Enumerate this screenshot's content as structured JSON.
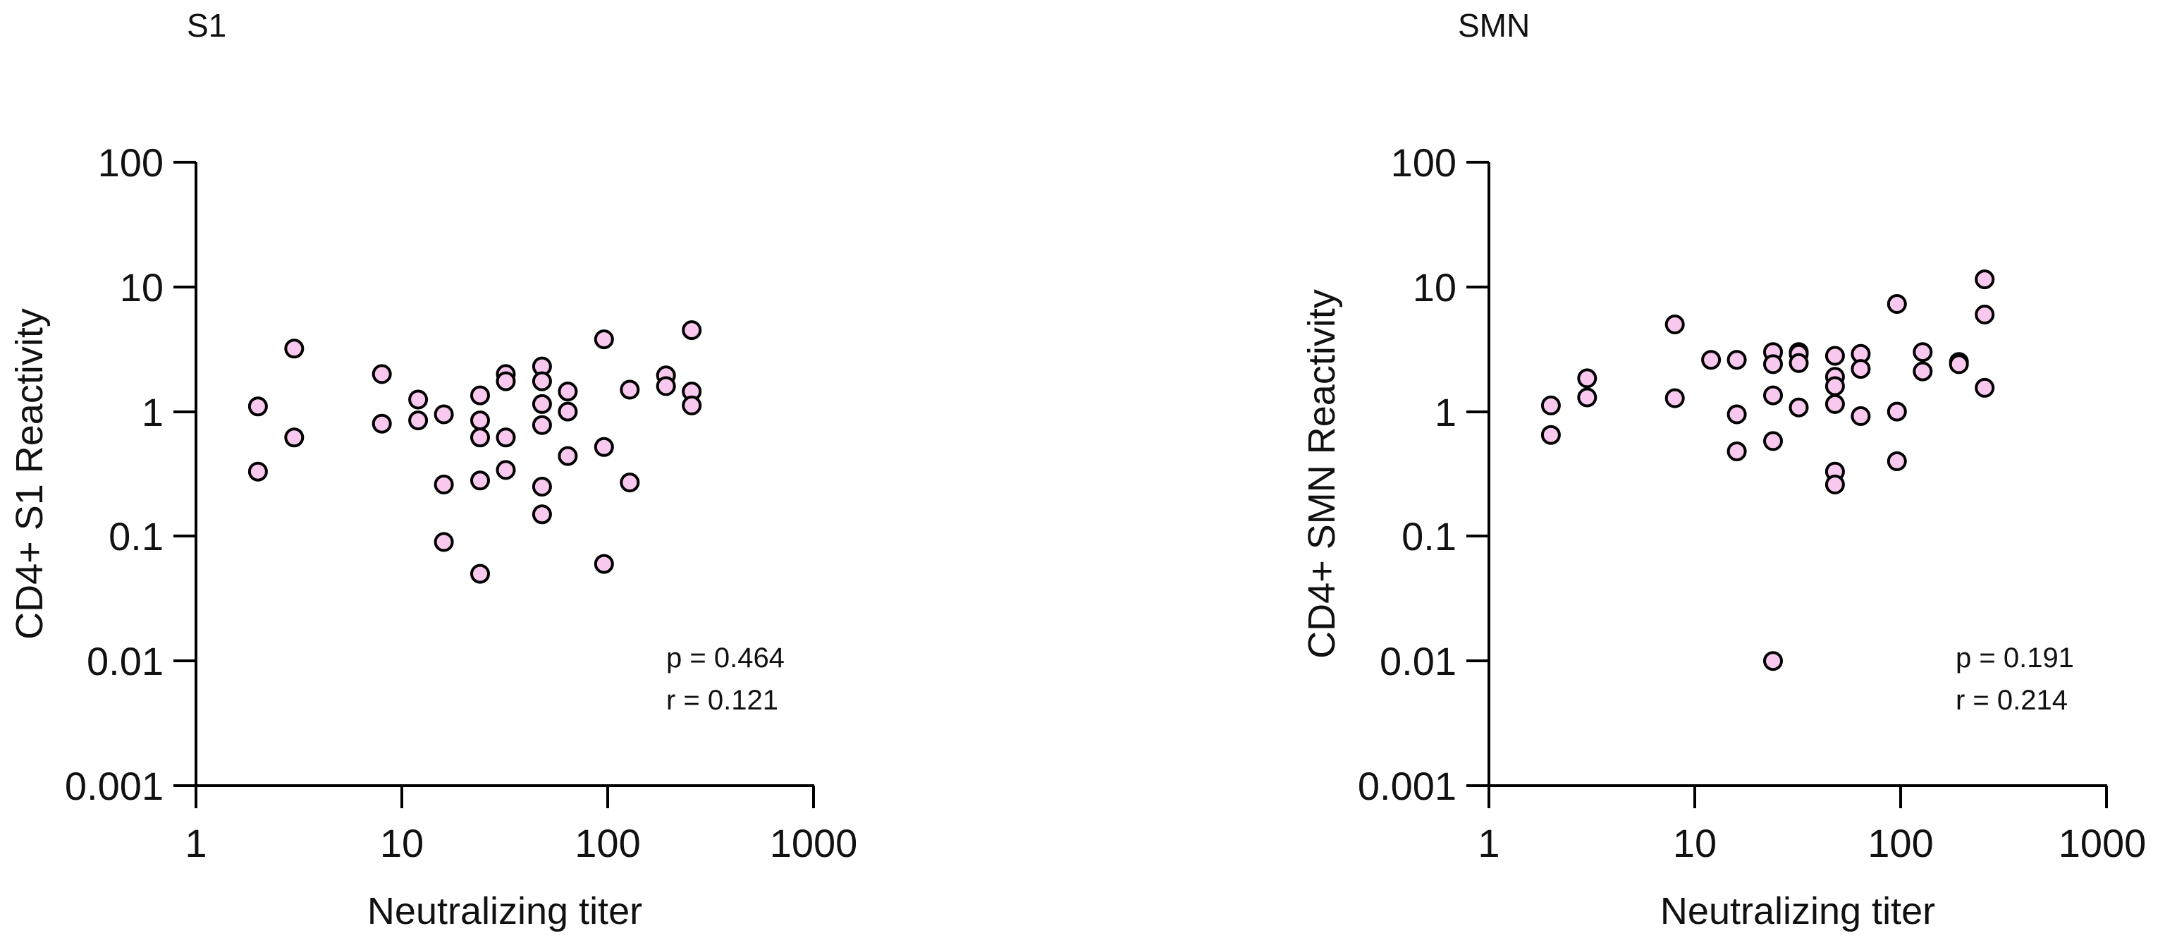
{
  "marker_color": "#f9c8ee",
  "chart_data": [
    {
      "type": "scatter",
      "title": "S1",
      "xlabel": "Neutralizing titer",
      "ylabel": "CD4+ S1 Reactivity",
      "xscale": "log",
      "yscale": "log",
      "xlim": [
        1,
        1000
      ],
      "ylim": [
        0.001,
        100
      ],
      "xticks": [
        1,
        10,
        100,
        1000
      ],
      "xtick_labels": [
        "1",
        "10",
        "100",
        "1000"
      ],
      "yticks": [
        0.001,
        0.01,
        0.1,
        1,
        10,
        100
      ],
      "ytick_labels": [
        "0.001",
        "0.01",
        "0.1",
        "1",
        "10",
        "100"
      ],
      "annotations": [
        "p = 0.464",
        "r = 0.121"
      ],
      "points": [
        {
          "x": 2,
          "y": 1.1
        },
        {
          "x": 2,
          "y": 0.33
        },
        {
          "x": 3,
          "y": 3.2
        },
        {
          "x": 3,
          "y": 0.62
        },
        {
          "x": 8,
          "y": 2.0
        },
        {
          "x": 8,
          "y": 0.8
        },
        {
          "x": 12,
          "y": 1.25
        },
        {
          "x": 12,
          "y": 0.85
        },
        {
          "x": 16,
          "y": 0.95
        },
        {
          "x": 16,
          "y": 0.26
        },
        {
          "x": 16,
          "y": 0.09
        },
        {
          "x": 24,
          "y": 1.35
        },
        {
          "x": 24,
          "y": 0.85
        },
        {
          "x": 24,
          "y": 0.62
        },
        {
          "x": 24,
          "y": 0.28
        },
        {
          "x": 24,
          "y": 0.05
        },
        {
          "x": 32,
          "y": 2.0
        },
        {
          "x": 32,
          "y": 1.75
        },
        {
          "x": 32,
          "y": 0.62
        },
        {
          "x": 32,
          "y": 0.34
        },
        {
          "x": 48,
          "y": 2.3
        },
        {
          "x": 48,
          "y": 1.75
        },
        {
          "x": 48,
          "y": 1.15
        },
        {
          "x": 48,
          "y": 0.78
        },
        {
          "x": 48,
          "y": 0.25
        },
        {
          "x": 48,
          "y": 0.15
        },
        {
          "x": 64,
          "y": 1.45
        },
        {
          "x": 64,
          "y": 1.0
        },
        {
          "x": 64,
          "y": 0.44
        },
        {
          "x": 96,
          "y": 3.8
        },
        {
          "x": 96,
          "y": 0.52
        },
        {
          "x": 96,
          "y": 0.06
        },
        {
          "x": 128,
          "y": 1.5
        },
        {
          "x": 128,
          "y": 0.27
        },
        {
          "x": 192,
          "y": 1.95
        },
        {
          "x": 192,
          "y": 1.6
        },
        {
          "x": 256,
          "y": 4.5
        },
        {
          "x": 256,
          "y": 1.45
        },
        {
          "x": 256,
          "y": 1.12
        }
      ]
    },
    {
      "type": "scatter",
      "title": "SMN",
      "xlabel": "Neutralizing titer",
      "ylabel": "CD4+ SMN Reactivity",
      "xscale": "log",
      "yscale": "log",
      "xlim": [
        1,
        1000
      ],
      "ylim": [
        0.001,
        100
      ],
      "xticks": [
        1,
        10,
        100,
        1000
      ],
      "xtick_labels": [
        "1",
        "10",
        "100",
        "1000"
      ],
      "yticks": [
        0.001,
        0.01,
        0.1,
        1,
        10,
        100
      ],
      "ytick_labels": [
        "0.001",
        "0.01",
        "0.1",
        "1",
        "10",
        "100"
      ],
      "annotations": [
        "p = 0.191",
        "r = 0.214"
      ],
      "points": [
        {
          "x": 2,
          "y": 1.12
        },
        {
          "x": 2,
          "y": 0.65
        },
        {
          "x": 3,
          "y": 1.85
        },
        {
          "x": 3,
          "y": 1.3
        },
        {
          "x": 8,
          "y": 5.0
        },
        {
          "x": 8,
          "y": 1.28
        },
        {
          "x": 12,
          "y": 2.6
        },
        {
          "x": 16,
          "y": 2.6
        },
        {
          "x": 16,
          "y": 0.95
        },
        {
          "x": 16,
          "y": 0.48
        },
        {
          "x": 24,
          "y": 3.0
        },
        {
          "x": 24,
          "y": 2.4
        },
        {
          "x": 24,
          "y": 1.35
        },
        {
          "x": 24,
          "y": 0.58
        },
        {
          "x": 24,
          "y": 0.01
        },
        {
          "x": 32,
          "y": 3.0
        },
        {
          "x": 32,
          "y": 2.9
        },
        {
          "x": 32,
          "y": 2.45
        },
        {
          "x": 32,
          "y": 1.08
        },
        {
          "x": 48,
          "y": 2.8
        },
        {
          "x": 48,
          "y": 1.9
        },
        {
          "x": 48,
          "y": 1.6
        },
        {
          "x": 48,
          "y": 1.15
        },
        {
          "x": 48,
          "y": 0.33
        },
        {
          "x": 48,
          "y": 0.26
        },
        {
          "x": 64,
          "y": 2.9
        },
        {
          "x": 64,
          "y": 2.2
        },
        {
          "x": 64,
          "y": 0.92
        },
        {
          "x": 96,
          "y": 7.3
        },
        {
          "x": 96,
          "y": 1.0
        },
        {
          "x": 96,
          "y": 0.4
        },
        {
          "x": 128,
          "y": 3.0
        },
        {
          "x": 128,
          "y": 2.1
        },
        {
          "x": 192,
          "y": 2.5
        },
        {
          "x": 192,
          "y": 2.4
        },
        {
          "x": 256,
          "y": 11.5
        },
        {
          "x": 256,
          "y": 6.0
        },
        {
          "x": 256,
          "y": 1.55
        }
      ]
    }
  ]
}
